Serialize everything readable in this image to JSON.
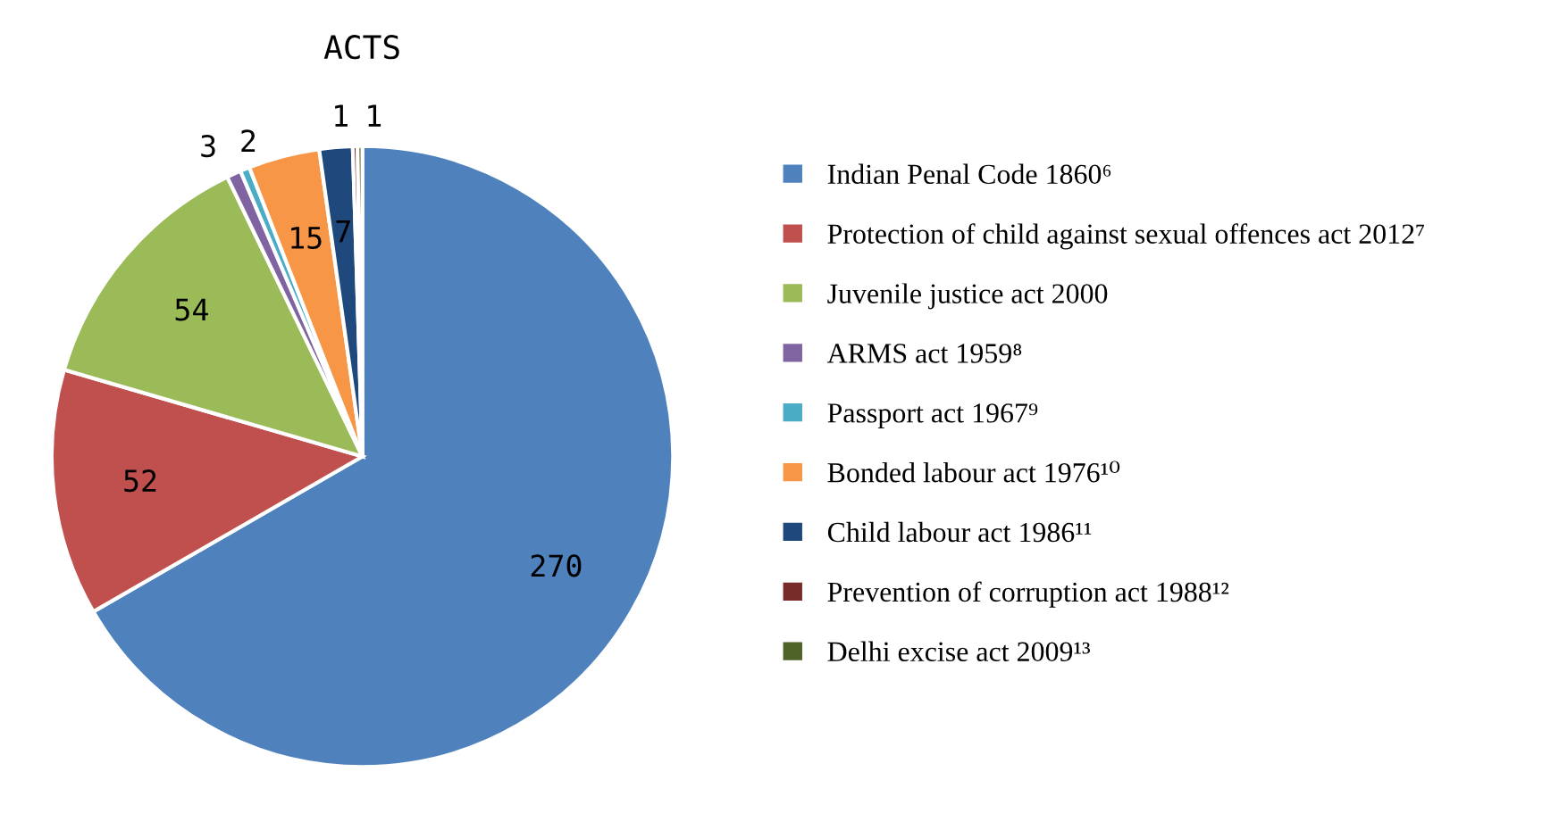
{
  "chart_data": {
    "type": "pie",
    "title": "ACTS",
    "categories": [
      "Indian Penal Code 1860⁶",
      "Protection of child against sexual offences act 2012⁷",
      "Juvenile justice act 2000",
      "ARMS act 1959⁸",
      "Passport act 1967⁹",
      "Bonded labour act 1976¹⁰",
      "Child labour act 1986¹¹",
      "Prevention of corruption act 1988¹²",
      "Delhi excise act 2009¹³"
    ],
    "values": [
      270,
      52,
      54,
      3,
      2,
      15,
      7,
      1,
      1
    ],
    "colors": [
      "#4f81bd",
      "#c0504d",
      "#9bbb59",
      "#8064a2",
      "#4bacc6",
      "#f79646",
      "#1f497d",
      "#772c2a",
      "#4f6228"
    ],
    "data_labels": true,
    "legend": "right"
  }
}
